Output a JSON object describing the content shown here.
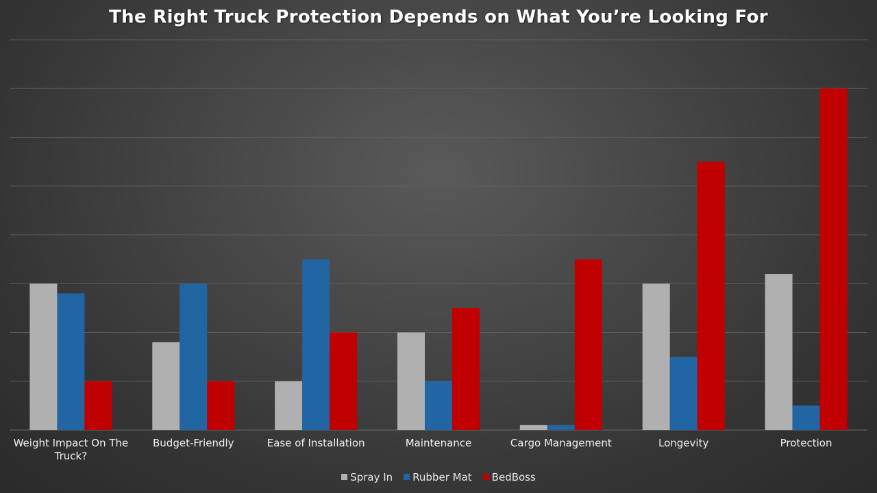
{
  "chart_data": {
    "type": "bar",
    "title": "The Right Truck Protection Depends on What You’re Looking For",
    "xlabel": "",
    "ylabel": "",
    "ylim": [
      0,
      8
    ],
    "grid": true,
    "legend_position": "bottom",
    "categories": [
      "Weight Impact On The Truck?",
      "Budget-Friendly",
      "Ease of Installation",
      "Maintenance",
      "Cargo Management",
      "Longevity",
      "Protection"
    ],
    "series": [
      {
        "name": "Spray In",
        "color": "#b0b0b0",
        "values": [
          3.0,
          1.8,
          1.0,
          2.0,
          0.1,
          3.0,
          3.2
        ]
      },
      {
        "name": "Rubber Mat",
        "color": "#2265a3",
        "values": [
          2.8,
          3.0,
          3.5,
          1.0,
          0.1,
          1.5,
          0.5
        ]
      },
      {
        "name": "BedBoss",
        "color": "#c00000",
        "values": [
          1.0,
          1.0,
          2.0,
          2.5,
          3.5,
          5.5,
          7.0
        ]
      }
    ]
  }
}
